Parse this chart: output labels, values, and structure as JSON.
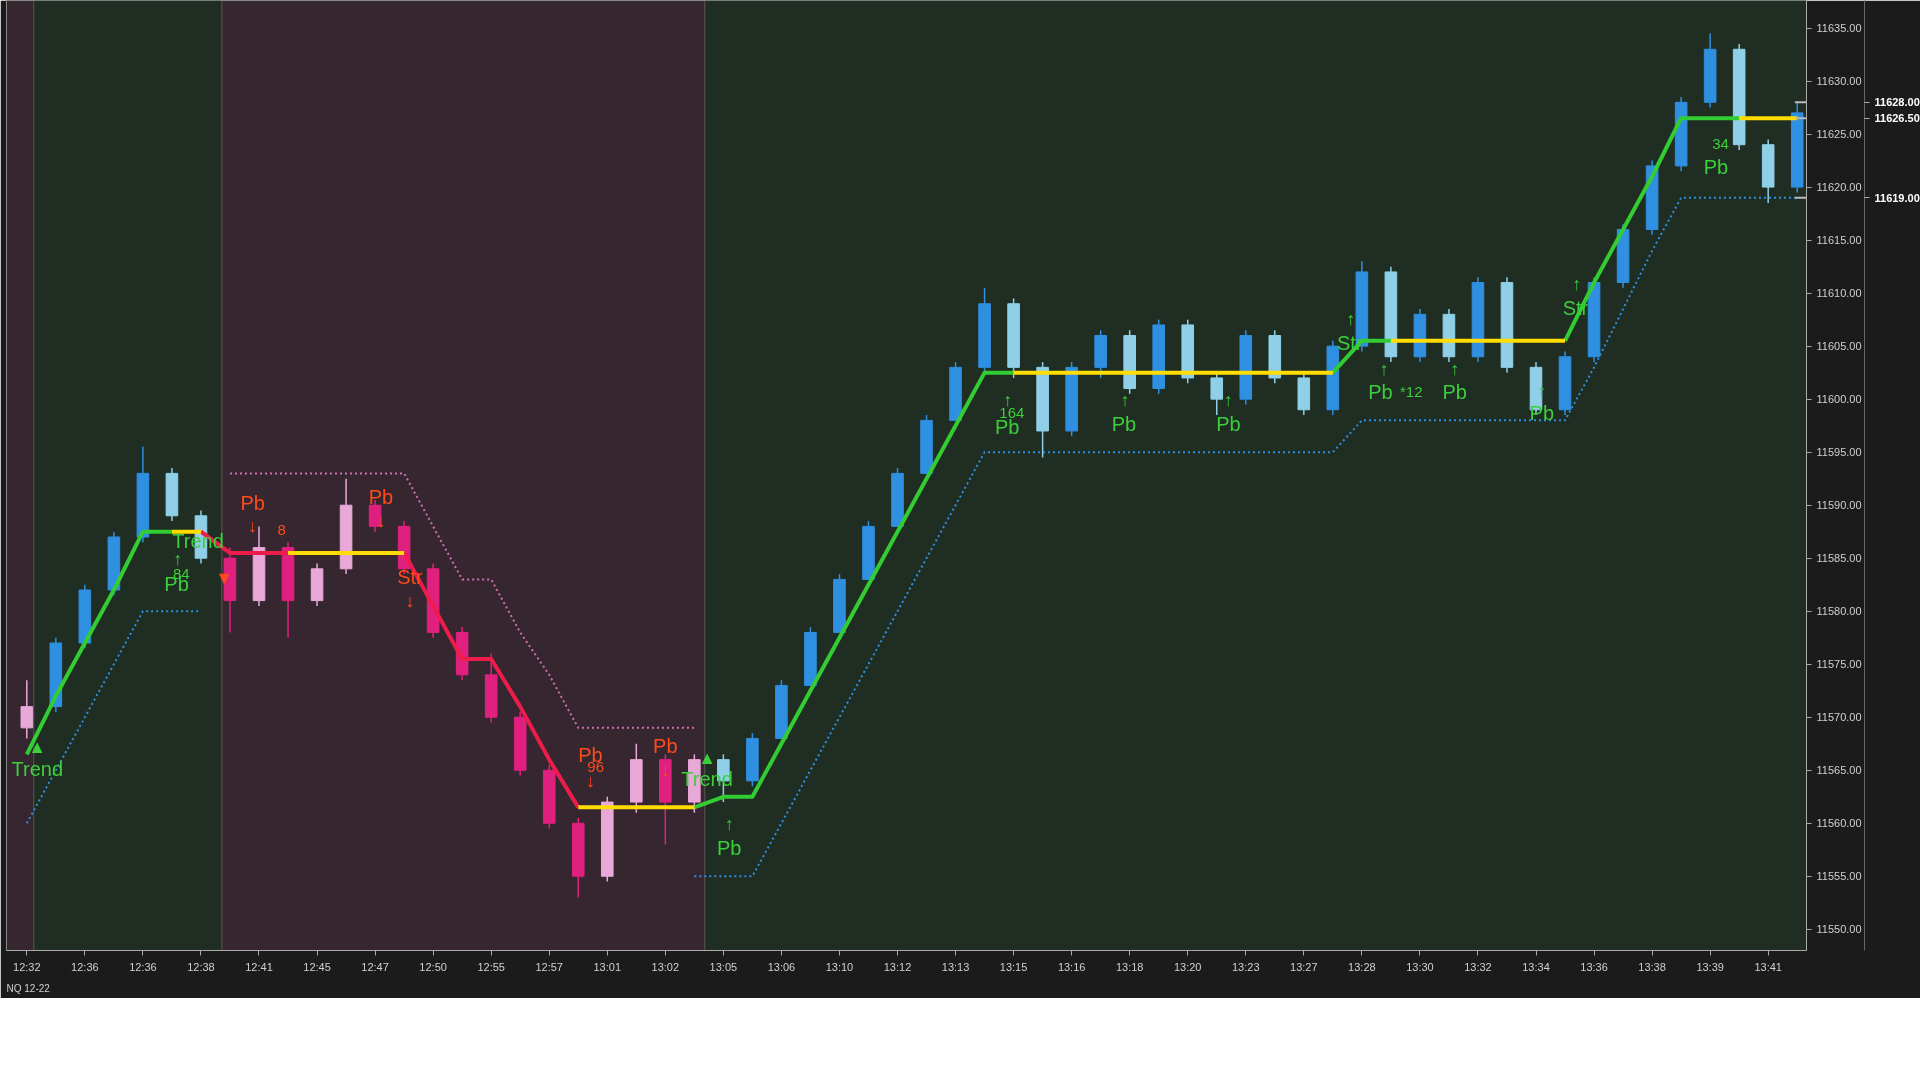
{
  "chart_data": {
    "type": "candlestick",
    "categories": [
      "12:32",
      null,
      "12:36",
      null,
      "12:36",
      null,
      "12:38",
      null,
      "12:41",
      null,
      "12:45",
      null,
      "12:47",
      null,
      "12:50",
      null,
      "12:55",
      null,
      "12:57",
      null,
      "13:01",
      null,
      "13:02",
      null,
      "13:05",
      null,
      "13:06",
      null,
      "13:10",
      null,
      "13:12",
      null,
      "13:13",
      null,
      "13:15",
      null,
      "13:16",
      null,
      "13:18",
      null,
      "13:20",
      null,
      "13:23",
      null,
      "13:27",
      null,
      "13:28",
      null,
      "13:30",
      null,
      "13:32",
      null,
      "13:34",
      null,
      "13:36",
      null,
      "13:38",
      null,
      "13:39",
      null,
      "13:41",
      null
    ],
    "ohlc": [
      [
        11569,
        11573.5,
        11568,
        11571
      ],
      [
        11571,
        11577.5,
        11570.5,
        11577
      ],
      [
        11577,
        11582.5,
        11576.5,
        11582
      ],
      [
        11582,
        11587.5,
        11581.5,
        11587
      ],
      [
        11587,
        11595.5,
        11586.5,
        11593
      ],
      [
        11593,
        11593.5,
        11588.5,
        11589
      ],
      [
        11589,
        11589.5,
        11584.5,
        11585
      ],
      [
        11585,
        11586,
        11578,
        11581
      ],
      [
        11581,
        11588,
        11580.5,
        11586
      ],
      [
        11586,
        11586.5,
        11577.5,
        11581
      ],
      [
        11581,
        11584.5,
        11580.5,
        11584
      ],
      [
        11584,
        11592.5,
        11583.5,
        11590
      ],
      [
        11590,
        11590.5,
        11587.5,
        11588
      ],
      [
        11588,
        11588.5,
        11583.5,
        11584
      ],
      [
        11584,
        11584.5,
        11577.5,
        11578
      ],
      [
        11578,
        11578.5,
        11573.5,
        11574
      ],
      [
        11574,
        11576,
        11569.5,
        11570
      ],
      [
        11570,
        11570.5,
        11564.5,
        11565
      ],
      [
        11565,
        11565.5,
        11559.5,
        11560
      ],
      [
        11560,
        11560.5,
        11553,
        11555
      ],
      [
        11555,
        11562.5,
        11554.5,
        11562
      ],
      [
        11562,
        11567.5,
        11561,
        11566
      ],
      [
        11566,
        11566.5,
        11558,
        11562
      ],
      [
        11562,
        11566.5,
        11561,
        11566
      ],
      [
        11566,
        11566.5,
        11562,
        11564
      ],
      [
        11564,
        11568.5,
        11563.5,
        11568
      ],
      [
        11568,
        11573.5,
        11568,
        11573
      ],
      [
        11573,
        11578.5,
        11573,
        11578
      ],
      [
        11578,
        11583.5,
        11578,
        11583
      ],
      [
        11583,
        11588.5,
        11583,
        11588
      ],
      [
        11588,
        11593.5,
        11588,
        11593
      ],
      [
        11593,
        11598.5,
        11593,
        11598
      ],
      [
        11598,
        11603.5,
        11598,
        11603
      ],
      [
        11603,
        11610.5,
        11602.5,
        11609
      ],
      [
        11609,
        11609.5,
        11602,
        11603
      ],
      [
        11603,
        11603.5,
        11594.5,
        11597
      ],
      [
        11597,
        11603.5,
        11596.5,
        11603
      ],
      [
        11603,
        11606.5,
        11602,
        11606
      ],
      [
        11606,
        11606.5,
        11600.5,
        11601
      ],
      [
        11601,
        11607.5,
        11600.5,
        11607
      ],
      [
        11607,
        11607.5,
        11601.5,
        11602
      ],
      [
        11602,
        11602.5,
        11598.5,
        11600
      ],
      [
        11600,
        11606.5,
        11599.5,
        11606
      ],
      [
        11606,
        11606.5,
        11601.5,
        11602
      ],
      [
        11602,
        11602.5,
        11598.5,
        11599
      ],
      [
        11599,
        11605.5,
        11598.5,
        11605
      ],
      [
        11605,
        11613,
        11604.5,
        11612
      ],
      [
        11612,
        11612.5,
        11603.5,
        11604
      ],
      [
        11604,
        11608.5,
        11603.5,
        11608
      ],
      [
        11608,
        11608.5,
        11603.5,
        11604
      ],
      [
        11604,
        11611.5,
        11603.5,
        11611
      ],
      [
        11611,
        11611.5,
        11602.5,
        11603
      ],
      [
        11603,
        11603.5,
        11598.5,
        11599
      ],
      [
        11599,
        11604.5,
        11598.5,
        11604
      ],
      [
        11604,
        11611.5,
        11603.5,
        11611
      ],
      [
        11611,
        11616.5,
        11610.5,
        11616
      ],
      [
        11616,
        11622.5,
        11615.5,
        11622
      ],
      [
        11622,
        11628.5,
        11621.5,
        11628
      ],
      [
        11628,
        11634.5,
        11627.5,
        11633
      ],
      [
        11633,
        11633.5,
        11623.5,
        11624
      ],
      [
        11624,
        11624.5,
        11618.5,
        11620
      ],
      [
        11620,
        11628,
        11619.5,
        11627
      ]
    ],
    "colors": [
      "#e8a8d8",
      "#2f8fe0",
      "#2f8fe0",
      "#2f8fe0",
      "#2f8fe0",
      "#8fd0e8",
      "#8fd0e8",
      "#e0207f",
      "#e8a8d8",
      "#e0207f",
      "#e8a8d8",
      "#e8a8d8",
      "#e0207f",
      "#e0207f",
      "#e0207f",
      "#e0207f",
      "#e0207f",
      "#e0207f",
      "#e0207f",
      "#e0207f",
      "#e8a8d8",
      "#e8a8d8",
      "#e0207f",
      "#e8a8d8",
      "#8fd0e8",
      "#2f8fe0",
      "#2f8fe0",
      "#2f8fe0",
      "#2f8fe0",
      "#2f8fe0",
      "#2f8fe0",
      "#2f8fe0",
      "#2f8fe0",
      "#2f8fe0",
      "#8fd0e8",
      "#8fd0e8",
      "#2f8fe0",
      "#2f8fe0",
      "#8fd0e8",
      "#2f8fe0",
      "#8fd0e8",
      "#8fd0e8",
      "#2f8fe0",
      "#8fd0e8",
      "#8fd0e8",
      "#2f8fe0",
      "#2f8fe0",
      "#8fd0e8",
      "#2f8fe0",
      "#8fd0e8",
      "#2f8fe0",
      "#8fd0e8",
      "#8fd0e8",
      "#2f8fe0",
      "#2f8fe0",
      "#2f8fe0",
      "#2f8fe0",
      "#2f8fe0",
      "#2f8fe0",
      "#8fd0e8",
      "#8fd0e8",
      "#2f8fe0"
    ],
    "series": [
      {
        "type": "line",
        "color": "#2f8fe0",
        "line_style": "dotted",
        "values": [
          11560,
          11565,
          11570,
          11575,
          11580,
          11580,
          11580,
          null,
          null,
          null,
          null,
          null,
          null,
          null,
          null,
          null,
          null,
          null,
          null,
          null,
          null,
          null,
          null,
          11555,
          11555,
          11555,
          11560,
          11565,
          11570,
          11575,
          11580,
          11585,
          11590,
          11595,
          11595,
          11595,
          11595,
          11595,
          11595,
          11595,
          11595,
          11595,
          11595,
          11595,
          11595,
          11595,
          11598,
          11598,
          11598,
          11598,
          11598,
          11598,
          11598,
          11598,
          11603,
          11608.5,
          11614,
          11619,
          11619,
          11619,
          11619,
          11619
        ]
      },
      {
        "type": "line",
        "color": "#d070b0",
        "line_style": "dotted",
        "values": [
          null,
          null,
          null,
          null,
          null,
          null,
          null,
          11593,
          11593,
          11593,
          11593,
          11593,
          11593,
          11593,
          11588,
          11583,
          11583,
          11578,
          11574,
          11569,
          11569,
          11569,
          11569,
          11569,
          null,
          null,
          null,
          null,
          null,
          null,
          null,
          null,
          null,
          null,
          null,
          null,
          null,
          null,
          null,
          null,
          null,
          null,
          null,
          null,
          null,
          null,
          null,
          null,
          null,
          null,
          null,
          null,
          null,
          null,
          null,
          null,
          null,
          null,
          null,
          null,
          null,
          null
        ]
      },
      {
        "type": "line",
        "color": "#ee1c4a",
        "line_style": "solid",
        "values": [
          null,
          null,
          null,
          null,
          null,
          null,
          11587.5,
          11585.5,
          11585.5,
          11585.5,
          null,
          null,
          null,
          11585.5,
          11580.5,
          11575.5,
          11575.5,
          11571,
          11566,
          11561.5,
          null,
          null,
          null,
          null,
          null,
          null,
          null,
          null,
          null,
          null,
          null,
          null,
          null,
          null,
          null,
          null,
          null,
          null,
          null,
          null,
          null,
          null,
          null,
          null,
          null,
          null,
          null,
          null,
          null,
          null,
          null,
          null,
          null,
          null,
          null,
          null,
          null,
          null,
          null,
          null,
          null,
          null
        ]
      },
      {
        "type": "line",
        "color": "#33cc33",
        "line_style": "solid",
        "values": [
          11566.5,
          11572,
          11577,
          11582,
          11587.5,
          11587.5,
          null,
          null,
          null,
          null,
          null,
          null,
          null,
          null,
          null,
          null,
          null,
          null,
          null,
          null,
          null,
          null,
          null,
          11561.5,
          11562.5,
          11562.5,
          11567.5,
          11572.5,
          11577.5,
          11582.5,
          11587.5,
          11592.5,
          11597.5,
          11602.5,
          11602.5,
          null,
          null,
          null,
          null,
          null,
          null,
          null,
          null,
          null,
          null,
          11602.5,
          11605.5,
          11605.5,
          null,
          null,
          null,
          null,
          null,
          11605.5,
          11611,
          11616,
          11621,
          11626.5,
          11626.5,
          11626.5,
          null,
          null
        ]
      },
      {
        "type": "line",
        "color": "#ffdd00",
        "line_style": "solid",
        "values": [
          null,
          null,
          null,
          null,
          null,
          11587.5,
          11587.5,
          null,
          null,
          11585.5,
          11585.5,
          11585.5,
          11585.5,
          11585.5,
          null,
          null,
          null,
          null,
          null,
          11561.5,
          11561.5,
          11561.5,
          11561.5,
          11561.5,
          null,
          null,
          null,
          null,
          null,
          null,
          null,
          null,
          null,
          null,
          11602.5,
          11602.5,
          11602.5,
          11602.5,
          11602.5,
          11602.5,
          11602.5,
          11602.5,
          11602.5,
          11602.5,
          11602.5,
          11602.5,
          null,
          11605.5,
          11605.5,
          11605.5,
          11605.5,
          11605.5,
          11605.5,
          11605.5,
          null,
          null,
          null,
          null,
          null,
          11626.5,
          11626.5,
          11626.5
        ]
      }
    ],
    "ylim": [
      11548,
      11637.6
    ],
    "yticks": [
      {
        "value": 11550,
        "label": "11550.00"
      },
      {
        "value": 11555,
        "label": "11555.00"
      },
      {
        "value": 11560,
        "label": "11560.00"
      },
      {
        "value": 11565,
        "label": "11565.00"
      },
      {
        "value": 11570,
        "label": "11570.00"
      },
      {
        "value": 11575,
        "label": "11575.00"
      },
      {
        "value": 11580,
        "label": "11580.00"
      },
      {
        "value": 11585,
        "label": "11585.00"
      },
      {
        "value": 11590,
        "label": "11590.00"
      },
      {
        "value": 11595,
        "label": "11595.00"
      },
      {
        "value": 11600,
        "label": "11600.00"
      },
      {
        "value": 11605,
        "label": "11605.00"
      },
      {
        "value": 11610,
        "label": "11610.00"
      },
      {
        "value": 11615,
        "label": "11615.00"
      },
      {
        "value": 11620,
        "label": "11620.00"
      },
      {
        "value": 11625,
        "label": "11625.00"
      },
      {
        "value": 11630,
        "label": "11630.00"
      },
      {
        "value": 11635,
        "label": "11635.00"
      }
    ],
    "ref_lines": [
      {
        "axis": "y",
        "value": 11628,
        "label": "11628.00"
      },
      {
        "axis": "y",
        "value": 11626.5,
        "label": "11626.50"
      },
      {
        "axis": "y",
        "value": 11619,
        "label": "11619.00"
      }
    ],
    "annotations": [
      "▲",
      "Trend",
      "↑",
      "84",
      "Pb",
      "Trend",
      "▼",
      "Pb",
      "↓",
      "8",
      "Pb",
      "↓",
      "Str",
      "↓",
      "Pb",
      "96",
      "↓",
      "Pb",
      "↓",
      "▲",
      "Trend",
      "↑",
      "Pb",
      "↑",
      "164",
      "Pb",
      "↑",
      "Pb",
      "↑",
      "Pb",
      "↑",
      "Str",
      "↑",
      "Pb",
      "*12",
      "↑",
      "Pb",
      "↑",
      "Pb",
      "↑",
      "Str",
      "34",
      "Pb",
      "NQ 12-22"
    ],
    "grid": false
  }
}
